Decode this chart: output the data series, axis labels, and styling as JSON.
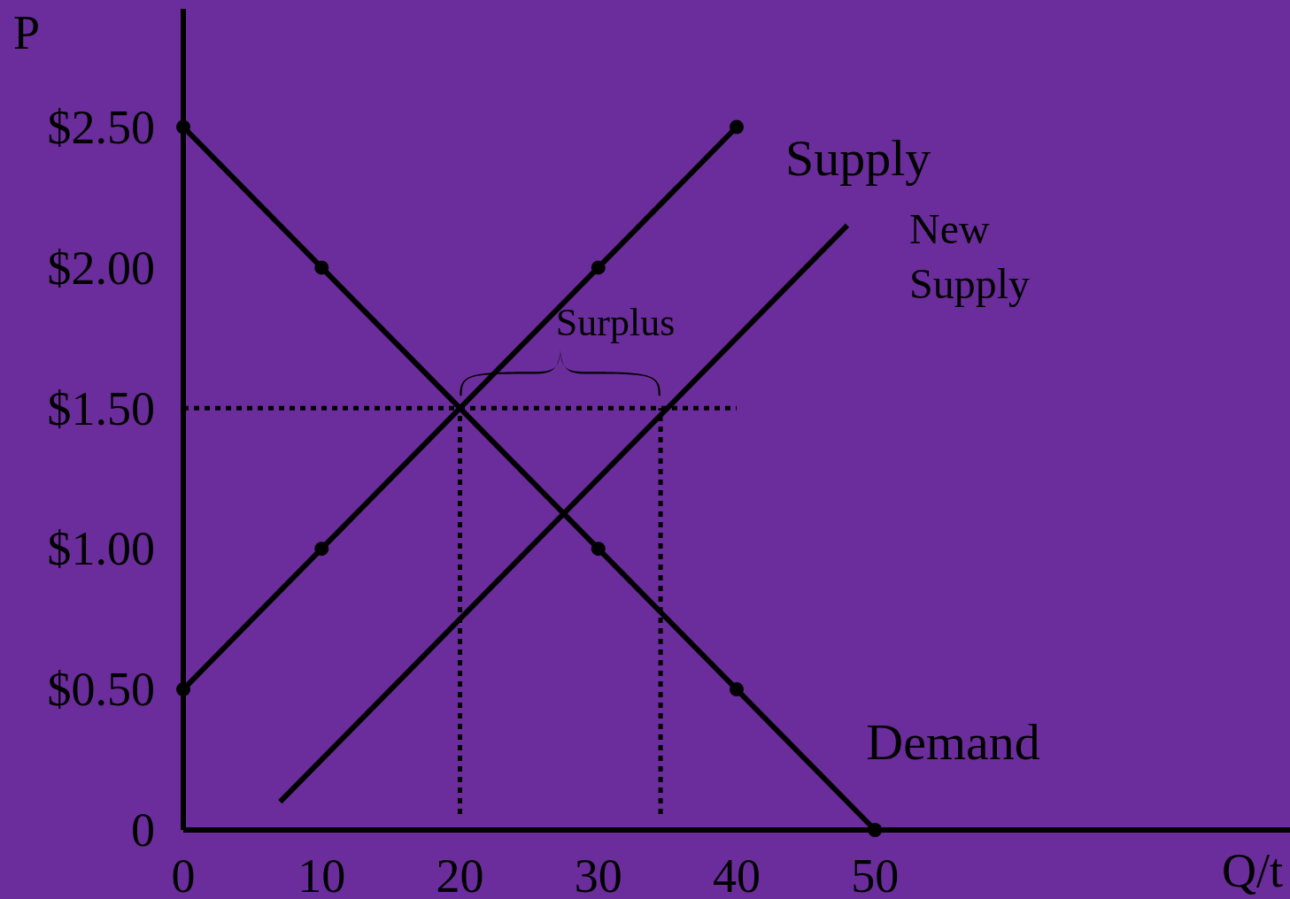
{
  "chart_data": {
    "type": "line",
    "xlabel": "Q/t",
    "ylabel": "P",
    "xlim": [
      0,
      80
    ],
    "ylim": [
      0,
      2.92
    ],
    "xticks": [
      0,
      10,
      20,
      30,
      40,
      50
    ],
    "yticks": [
      0,
      {
        "value": 0.5,
        "label": "$0.50"
      },
      {
        "value": 1,
        "label": "$1.00"
      },
      {
        "value": 1.5,
        "label": "$1.50"
      },
      {
        "value": 2,
        "label": "$2.00"
      },
      {
        "value": 2.5,
        "label": "$2.50"
      }
    ],
    "grid": false,
    "line_style": "solid",
    "series": [
      {
        "name": "Supply",
        "color": "#000000",
        "marker": "circle",
        "x": [
          0,
          10,
          30,
          40
        ],
        "values": [
          0.5,
          1,
          2,
          2.5
        ]
      },
      {
        "name": "New Supply",
        "color": "#000000",
        "marker": "none",
        "x": [
          7,
          48
        ],
        "values": [
          0.1,
          2.15
        ]
      },
      {
        "name": "Demand",
        "color": "#000000",
        "marker": "circle",
        "x": [
          0,
          10,
          30,
          40,
          50
        ],
        "values": [
          2.5,
          2,
          1,
          0.5,
          0
        ]
      },
      {
        "color": "#000000",
        "marker": "none",
        "line_style": "dotted",
        "x": [
          0,
          40
        ],
        "values": [
          1.5,
          1.5
        ]
      }
    ],
    "ref_lines": [
      {
        "axis": "x",
        "value": 20,
        "line_style": "dotted",
        "color": "#000000"
      },
      {
        "axis": "x",
        "value": 34.5,
        "line_style": "dotted",
        "color": "#000000"
      }
    ],
    "annotations": [
      "Surplus"
    ]
  }
}
